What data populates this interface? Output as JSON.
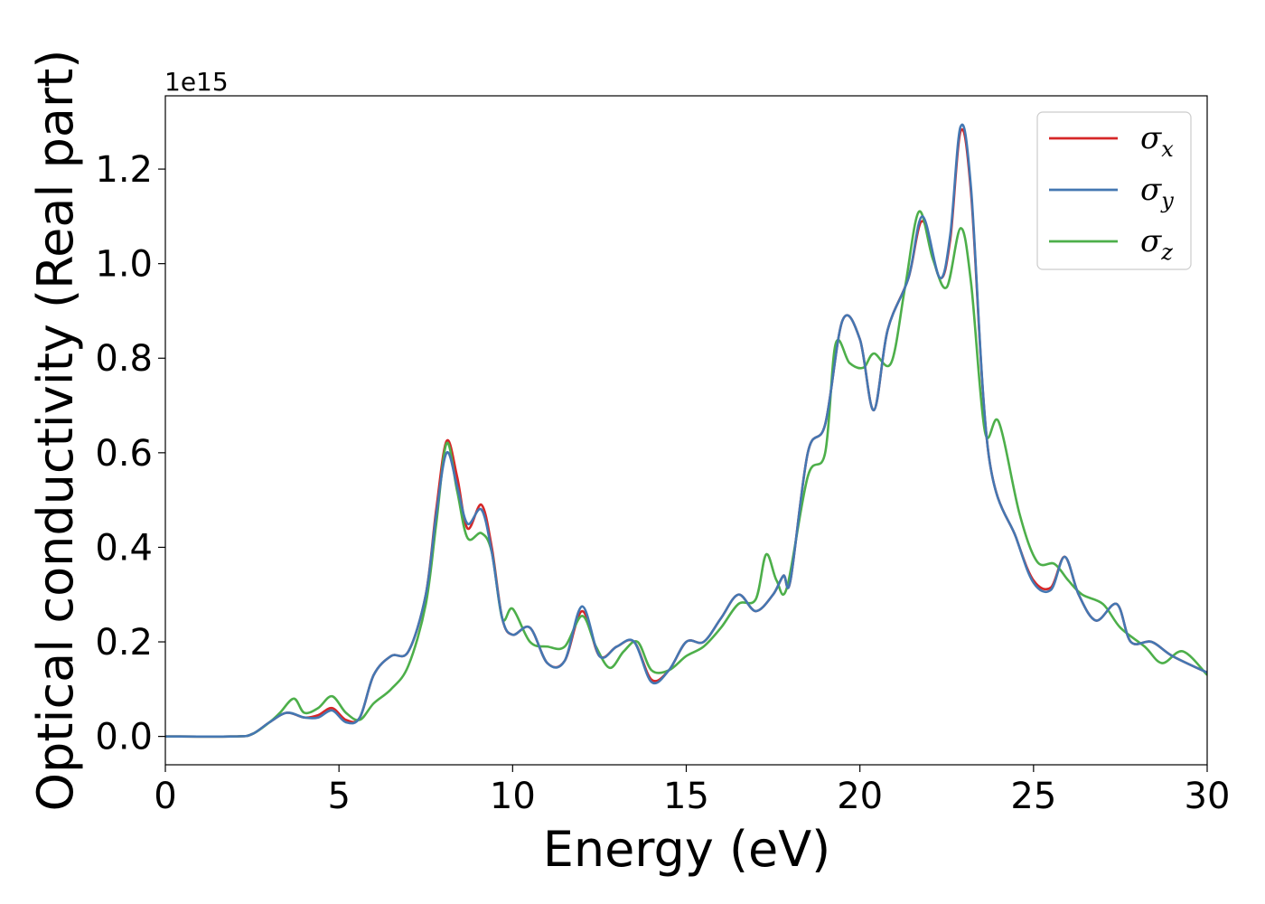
{
  "chart_data": {
    "type": "line",
    "xlabel": "Energy (eV)",
    "ylabel": "Optical conductivity (Real part)",
    "y_offset_label": "1e15",
    "xlim": [
      0,
      30
    ],
    "ylim": [
      -0.06,
      1.355
    ],
    "xticks": [
      0,
      5,
      10,
      15,
      20,
      25,
      30
    ],
    "yticks": [
      0.0,
      0.2,
      0.4,
      0.6,
      0.8,
      1.0,
      1.2
    ],
    "ytick_labels": [
      "0.0",
      "0.2",
      "0.4",
      "0.6",
      "0.8",
      "1.0",
      "1.2"
    ],
    "grid": false,
    "legend_position": "top-right",
    "series": [
      {
        "name": "σx",
        "symbol": "σ",
        "subscript": "x",
        "color": "#d62728",
        "points": [
          [
            0,
            0.0
          ],
          [
            2,
            0.0
          ],
          [
            2.5,
            0.005
          ],
          [
            3,
            0.03
          ],
          [
            3.5,
            0.05
          ],
          [
            4,
            0.04
          ],
          [
            4.4,
            0.045
          ],
          [
            4.8,
            0.06
          ],
          [
            5.2,
            0.035
          ],
          [
            5.6,
            0.04
          ],
          [
            6,
            0.13
          ],
          [
            6.5,
            0.17
          ],
          [
            7,
            0.18
          ],
          [
            7.5,
            0.3
          ],
          [
            7.8,
            0.48
          ],
          [
            8.1,
            0.625
          ],
          [
            8.4,
            0.55
          ],
          [
            8.7,
            0.44
          ],
          [
            9.1,
            0.49
          ],
          [
            9.4,
            0.4
          ],
          [
            9.7,
            0.25
          ],
          [
            10,
            0.215
          ],
          [
            10.5,
            0.23
          ],
          [
            11,
            0.155
          ],
          [
            11.5,
            0.16
          ],
          [
            12,
            0.265
          ],
          [
            12.5,
            0.17
          ],
          [
            13,
            0.19
          ],
          [
            13.5,
            0.2
          ],
          [
            14,
            0.12
          ],
          [
            14.5,
            0.14
          ],
          [
            15,
            0.2
          ],
          [
            15.5,
            0.2
          ],
          [
            16,
            0.25
          ],
          [
            16.5,
            0.3
          ],
          [
            17,
            0.265
          ],
          [
            17.5,
            0.3
          ],
          [
            17.8,
            0.34
          ],
          [
            18,
            0.33
          ],
          [
            18.5,
            0.6
          ],
          [
            19,
            0.66
          ],
          [
            19.5,
            0.88
          ],
          [
            20,
            0.84
          ],
          [
            20.4,
            0.69
          ],
          [
            20.8,
            0.86
          ],
          [
            21.4,
            0.97
          ],
          [
            21.8,
            1.09
          ],
          [
            22.3,
            0.97
          ],
          [
            22.6,
            1.05
          ],
          [
            22.9,
            1.28
          ],
          [
            23.2,
            1.15
          ],
          [
            23.7,
            0.6
          ],
          [
            24.5,
            0.42
          ],
          [
            25,
            0.33
          ],
          [
            25.5,
            0.315
          ],
          [
            25.9,
            0.38
          ],
          [
            26.3,
            0.3
          ],
          [
            26.8,
            0.245
          ],
          [
            27.4,
            0.28
          ],
          [
            27.8,
            0.2
          ],
          [
            28.4,
            0.2
          ],
          [
            29,
            0.17
          ],
          [
            30,
            0.135
          ]
        ]
      },
      {
        "name": "σy",
        "symbol": "σ",
        "subscript": "y",
        "color": "#4477b2",
        "points": [
          [
            0,
            0.0
          ],
          [
            2,
            0.0
          ],
          [
            2.5,
            0.005
          ],
          [
            3,
            0.03
          ],
          [
            3.5,
            0.05
          ],
          [
            4,
            0.04
          ],
          [
            4.4,
            0.04
          ],
          [
            4.8,
            0.055
          ],
          [
            5.2,
            0.03
          ],
          [
            5.6,
            0.04
          ],
          [
            6,
            0.13
          ],
          [
            6.5,
            0.17
          ],
          [
            7,
            0.18
          ],
          [
            7.5,
            0.3
          ],
          [
            7.8,
            0.47
          ],
          [
            8.1,
            0.6
          ],
          [
            8.4,
            0.53
          ],
          [
            8.7,
            0.45
          ],
          [
            9.1,
            0.48
          ],
          [
            9.4,
            0.39
          ],
          [
            9.7,
            0.25
          ],
          [
            10,
            0.215
          ],
          [
            10.5,
            0.23
          ],
          [
            11,
            0.155
          ],
          [
            11.5,
            0.16
          ],
          [
            12,
            0.275
          ],
          [
            12.5,
            0.17
          ],
          [
            13,
            0.19
          ],
          [
            13.5,
            0.2
          ],
          [
            14,
            0.115
          ],
          [
            14.5,
            0.14
          ],
          [
            15,
            0.2
          ],
          [
            15.5,
            0.2
          ],
          [
            16,
            0.25
          ],
          [
            16.5,
            0.3
          ],
          [
            17,
            0.265
          ],
          [
            17.5,
            0.3
          ],
          [
            17.8,
            0.34
          ],
          [
            18,
            0.33
          ],
          [
            18.5,
            0.6
          ],
          [
            19,
            0.66
          ],
          [
            19.5,
            0.88
          ],
          [
            20,
            0.84
          ],
          [
            20.4,
            0.69
          ],
          [
            20.8,
            0.86
          ],
          [
            21.4,
            0.97
          ],
          [
            21.8,
            1.1
          ],
          [
            22.3,
            0.97
          ],
          [
            22.6,
            1.06
          ],
          [
            22.9,
            1.29
          ],
          [
            23.2,
            1.16
          ],
          [
            23.7,
            0.6
          ],
          [
            24.5,
            0.42
          ],
          [
            25,
            0.325
          ],
          [
            25.5,
            0.31
          ],
          [
            25.9,
            0.38
          ],
          [
            26.3,
            0.3
          ],
          [
            26.8,
            0.245
          ],
          [
            27.4,
            0.28
          ],
          [
            27.8,
            0.2
          ],
          [
            28.4,
            0.2
          ],
          [
            29,
            0.17
          ],
          [
            30,
            0.135
          ]
        ]
      },
      {
        "name": "σz",
        "symbol": "σ",
        "subscript": "z",
        "color": "#4daf4a",
        "points": [
          [
            0,
            0.0
          ],
          [
            2,
            0.0
          ],
          [
            2.5,
            0.005
          ],
          [
            3,
            0.03
          ],
          [
            3.3,
            0.05
          ],
          [
            3.7,
            0.08
          ],
          [
            4,
            0.05
          ],
          [
            4.4,
            0.06
          ],
          [
            4.8,
            0.085
          ],
          [
            5.2,
            0.05
          ],
          [
            5.6,
            0.035
          ],
          [
            6,
            0.07
          ],
          [
            6.5,
            0.1
          ],
          [
            7,
            0.15
          ],
          [
            7.5,
            0.28
          ],
          [
            7.8,
            0.45
          ],
          [
            8.1,
            0.62
          ],
          [
            8.4,
            0.52
          ],
          [
            8.7,
            0.42
          ],
          [
            9.1,
            0.43
          ],
          [
            9.4,
            0.39
          ],
          [
            9.7,
            0.25
          ],
          [
            10,
            0.27
          ],
          [
            10.5,
            0.2
          ],
          [
            11,
            0.19
          ],
          [
            11.5,
            0.19
          ],
          [
            12,
            0.255
          ],
          [
            12.4,
            0.19
          ],
          [
            12.8,
            0.145
          ],
          [
            13.2,
            0.18
          ],
          [
            13.6,
            0.2
          ],
          [
            14,
            0.14
          ],
          [
            14.5,
            0.14
          ],
          [
            15,
            0.17
          ],
          [
            15.5,
            0.19
          ],
          [
            16,
            0.23
          ],
          [
            16.5,
            0.28
          ],
          [
            17,
            0.29
          ],
          [
            17.3,
            0.385
          ],
          [
            17.6,
            0.33
          ],
          [
            17.9,
            0.315
          ],
          [
            18.5,
            0.55
          ],
          [
            19,
            0.6
          ],
          [
            19.3,
            0.83
          ],
          [
            19.7,
            0.79
          ],
          [
            20.1,
            0.78
          ],
          [
            20.4,
            0.81
          ],
          [
            20.9,
            0.79
          ],
          [
            21.3,
            0.95
          ],
          [
            21.7,
            1.11
          ],
          [
            22.1,
            1.01
          ],
          [
            22.5,
            0.95
          ],
          [
            22.9,
            1.075
          ],
          [
            23.2,
            0.96
          ],
          [
            23.6,
            0.645
          ],
          [
            24,
            0.665
          ],
          [
            24.6,
            0.47
          ],
          [
            25.1,
            0.37
          ],
          [
            25.6,
            0.365
          ],
          [
            26,
            0.33
          ],
          [
            26.4,
            0.3
          ],
          [
            27,
            0.28
          ],
          [
            27.5,
            0.23
          ],
          [
            28.2,
            0.19
          ],
          [
            28.7,
            0.155
          ],
          [
            29.3,
            0.18
          ],
          [
            30,
            0.13
          ]
        ]
      }
    ]
  }
}
